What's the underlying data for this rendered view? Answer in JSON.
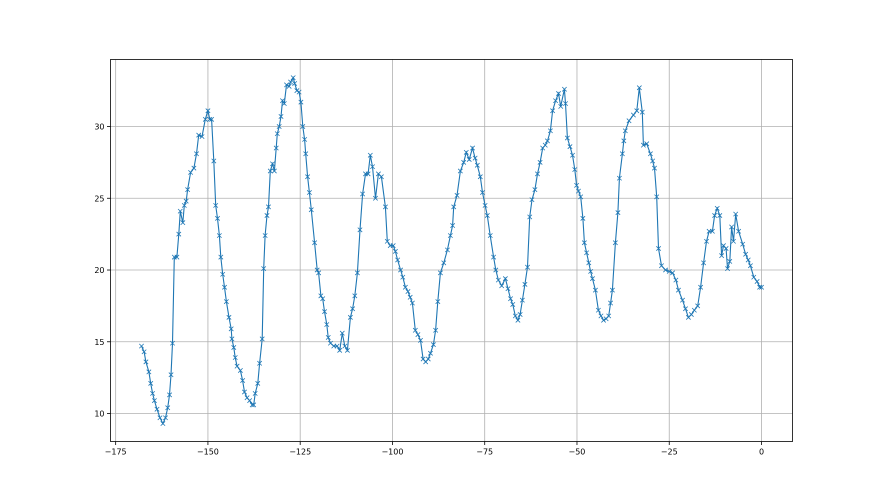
{
  "chart_data": {
    "type": "line",
    "marker": "x",
    "color": "#1f77b4",
    "grid": true,
    "title": "",
    "xlabel": "",
    "ylabel": "",
    "xlim": [
      -176.4,
      8.4
    ],
    "ylim": [
      8.05,
      34.67
    ],
    "xticks": [
      -175,
      -150,
      -125,
      -100,
      -75,
      -50,
      -25,
      0
    ],
    "xtick_labels": [
      "−175",
      "−150",
      "−125",
      "−100",
      "−75",
      "−50",
      "−25",
      "0"
    ],
    "yticks": [
      10,
      15,
      20,
      25,
      30
    ],
    "ytick_labels": [
      "10",
      "15",
      "20",
      "25",
      "30"
    ],
    "points": [
      [
        -168,
        14.7
      ],
      [
        -167.3,
        14.3
      ],
      [
        -166.8,
        13.6
      ],
      [
        -166,
        12.9
      ],
      [
        -165.5,
        12.1
      ],
      [
        -165,
        11.4
      ],
      [
        -164.5,
        10.9
      ],
      [
        -163.8,
        10.3
      ],
      [
        -163,
        9.7
      ],
      [
        -162.2,
        9.3
      ],
      [
        -161.5,
        9.7
      ],
      [
        -160.9,
        10.4
      ],
      [
        -160.4,
        11.3
      ],
      [
        -160,
        12.7
      ],
      [
        -159.6,
        14.9
      ],
      [
        -159.1,
        20.9
      ],
      [
        -158.4,
        20.9
      ],
      [
        -157.9,
        22.5
      ],
      [
        -157.5,
        24.1
      ],
      [
        -156.8,
        23.3
      ],
      [
        -156.4,
        24.5
      ],
      [
        -155.9,
        24.8
      ],
      [
        -155.5,
        25.6
      ],
      [
        -154.7,
        26.8
      ],
      [
        -153.8,
        27.1
      ],
      [
        -153.1,
        28.1
      ],
      [
        -152.5,
        29.4
      ],
      [
        -151.6,
        29.3
      ],
      [
        -150.7,
        30.5
      ],
      [
        -150,
        31.1
      ],
      [
        -149.5,
        30.5
      ],
      [
        -149,
        30.5
      ],
      [
        -148.4,
        27.6
      ],
      [
        -147.9,
        24.5
      ],
      [
        -147.4,
        23.6
      ],
      [
        -146.9,
        22.4
      ],
      [
        -146.5,
        20.9
      ],
      [
        -146,
        19.7
      ],
      [
        -145.5,
        18.8
      ],
      [
        -145,
        17.8
      ],
      [
        -144.3,
        16.7
      ],
      [
        -143.7,
        15.9
      ],
      [
        -143.5,
        15.2
      ],
      [
        -143,
        14.6
      ],
      [
        -142.6,
        13.9
      ],
      [
        -142.1,
        13.3
      ],
      [
        -141.2,
        13
      ],
      [
        -140.6,
        12.3
      ],
      [
        -140.1,
        11.5
      ],
      [
        -139.4,
        11.1
      ],
      [
        -138.7,
        10.9
      ],
      [
        -138,
        10.6
      ],
      [
        -137.6,
        10.6
      ],
      [
        -137.2,
        11.4
      ],
      [
        -136.5,
        12.1
      ],
      [
        -136,
        13.5
      ],
      [
        -135.3,
        15.2
      ],
      [
        -134.9,
        20.1
      ],
      [
        -134.5,
        22.4
      ],
      [
        -134,
        23.8
      ],
      [
        -133.6,
        24.4
      ],
      [
        -133.1,
        26.9
      ],
      [
        -132.5,
        27.4
      ],
      [
        -132,
        26.9
      ],
      [
        -131.5,
        28.5
      ],
      [
        -131.2,
        29.5
      ],
      [
        -130.7,
        30
      ],
      [
        -130.2,
        30.7
      ],
      [
        -129.8,
        31.8
      ],
      [
        -129.3,
        31.6
      ],
      [
        -128.7,
        32.9
      ],
      [
        -128,
        32.8
      ],
      [
        -127.6,
        33.1
      ],
      [
        -126.9,
        33.4
      ],
      [
        -126.5,
        33
      ],
      [
        -125.9,
        32.5
      ],
      [
        -125.3,
        32.4
      ],
      [
        -124.8,
        31.7
      ],
      [
        -124.3,
        30
      ],
      [
        -123.8,
        29.1
      ],
      [
        -123.5,
        28.1
      ],
      [
        -123,
        26.5
      ],
      [
        -122.5,
        25.4
      ],
      [
        -122,
        24.2
      ],
      [
        -121.1,
        21.9
      ],
      [
        -120.4,
        20
      ],
      [
        -120,
        19.8
      ],
      [
        -119.4,
        18.2
      ],
      [
        -118.9,
        18
      ],
      [
        -118.4,
        17.1
      ],
      [
        -117.8,
        16.2
      ],
      [
        -117.4,
        15.3
      ],
      [
        -116.8,
        14.9
      ],
      [
        -115.9,
        14.7
      ],
      [
        -115,
        14.7
      ],
      [
        -114.3,
        14.4
      ],
      [
        -113.6,
        15.6
      ],
      [
        -112.9,
        14.7
      ],
      [
        -112.2,
        14.4
      ],
      [
        -111.4,
        16.7
      ],
      [
        -110.8,
        17.3
      ],
      [
        -110.2,
        18.2
      ],
      [
        -109.5,
        19.8
      ],
      [
        -108.8,
        22.8
      ],
      [
        -108.1,
        25.3
      ],
      [
        -107.3,
        26.7
      ],
      [
        -106.6,
        26.7
      ],
      [
        -106,
        28
      ],
      [
        -105.4,
        27.2
      ],
      [
        -104.6,
        25
      ],
      [
        -103.8,
        26.7
      ],
      [
        -103,
        26.5
      ],
      [
        -101.9,
        24.4
      ],
      [
        -101.4,
        22
      ],
      [
        -100.6,
        21.7
      ],
      [
        -99.8,
        21.7
      ],
      [
        -99.2,
        21.3
      ],
      [
        -98.6,
        20.7
      ],
      [
        -97.8,
        20
      ],
      [
        -97.2,
        19.5
      ],
      [
        -96.5,
        18.8
      ],
      [
        -95.8,
        18.5
      ],
      [
        -95.2,
        18.1
      ],
      [
        -94.6,
        17.7
      ],
      [
        -93.8,
        15.8
      ],
      [
        -93.1,
        15.5
      ],
      [
        -92.4,
        15.1
      ],
      [
        -91.7,
        13.8
      ],
      [
        -91,
        13.6
      ],
      [
        -90.3,
        13.8
      ],
      [
        -89.7,
        14.2
      ],
      [
        -88.9,
        14.8
      ],
      [
        -88.3,
        15.8
      ],
      [
        -87.7,
        17.8
      ],
      [
        -87,
        19.8
      ],
      [
        -86.1,
        20.5
      ],
      [
        -85.1,
        21.4
      ],
      [
        -84.3,
        22.4
      ],
      [
        -83.7,
        23.1
      ],
      [
        -83.4,
        24.4
      ],
      [
        -82.5,
        25.2
      ],
      [
        -81.6,
        26.9
      ],
      [
        -80.7,
        27.5
      ],
      [
        -80,
        28.2
      ],
      [
        -79.2,
        27.7
      ],
      [
        -78.3,
        28.5
      ],
      [
        -77.6,
        27.8
      ],
      [
        -77,
        27.3
      ],
      [
        -76.2,
        26.5
      ],
      [
        -75.6,
        25.4
      ],
      [
        -74.9,
        24.5
      ],
      [
        -74.3,
        23.8
      ],
      [
        -73.5,
        22.4
      ],
      [
        -72.6,
        20.9
      ],
      [
        -72,
        20
      ],
      [
        -71.3,
        19.3
      ],
      [
        -70.4,
        18.9
      ],
      [
        -69.4,
        19.4
      ],
      [
        -68.7,
        18.7
      ],
      [
        -68,
        18
      ],
      [
        -67.4,
        17.6
      ],
      [
        -66.7,
        16.8
      ],
      [
        -66,
        16.5
      ],
      [
        -65.4,
        16.9
      ],
      [
        -64.8,
        17.9
      ],
      [
        -64.1,
        19
      ],
      [
        -63.4,
        20.2
      ],
      [
        -62.8,
        23.7
      ],
      [
        -62.2,
        24.9
      ],
      [
        -61.4,
        25.6
      ],
      [
        -60.7,
        26.7
      ],
      [
        -60,
        27.5
      ],
      [
        -59.3,
        28.5
      ],
      [
        -58.6,
        28.7
      ],
      [
        -58,
        29
      ],
      [
        -57.2,
        29.7
      ],
      [
        -56.6,
        31.1
      ],
      [
        -55.8,
        31.8
      ],
      [
        -55,
        32.3
      ],
      [
        -54.4,
        31.4
      ],
      [
        -53.4,
        32.6
      ],
      [
        -53.1,
        31.6
      ],
      [
        -52.6,
        29.2
      ],
      [
        -51.9,
        28.6
      ],
      [
        -51.2,
        28
      ],
      [
        -50.6,
        27
      ],
      [
        -50.1,
        25.9
      ],
      [
        -49.6,
        25.5
      ],
      [
        -49,
        25.1
      ],
      [
        -48.4,
        23.6
      ],
      [
        -48,
        21.9
      ],
      [
        -47.4,
        21.2
      ],
      [
        -46.8,
        20.5
      ],
      [
        -46.3,
        19.9
      ],
      [
        -45.8,
        19.4
      ],
      [
        -45,
        18.6
      ],
      [
        -44.2,
        17.2
      ],
      [
        -43.5,
        16.8
      ],
      [
        -42.8,
        16.5
      ],
      [
        -42.1,
        16.6
      ],
      [
        -41.4,
        16.8
      ],
      [
        -40.9,
        17.7
      ],
      [
        -40.4,
        18.6
      ],
      [
        -39.6,
        21.9
      ],
      [
        -38.9,
        24
      ],
      [
        -38.5,
        26.4
      ],
      [
        -37.7,
        28.1
      ],
      [
        -37.3,
        29
      ],
      [
        -36.9,
        29.7
      ],
      [
        -35.9,
        30.4
      ],
      [
        -34.7,
        30.8
      ],
      [
        -33.8,
        31.1
      ],
      [
        -33.1,
        32.7
      ],
      [
        -32.3,
        31
      ],
      [
        -32,
        28.7
      ],
      [
        -31.1,
        28.8
      ],
      [
        -30.1,
        28.1
      ],
      [
        -29.5,
        27.6
      ],
      [
        -29,
        27.1
      ],
      [
        -28.4,
        25.1
      ],
      [
        -27.9,
        21.5
      ],
      [
        -27.1,
        20.3
      ],
      [
        -26,
        20
      ],
      [
        -25,
        19.9
      ],
      [
        -24.1,
        19.8
      ],
      [
        -23.2,
        19.3
      ],
      [
        -22.5,
        18.6
      ],
      [
        -21.4,
        17.9
      ],
      [
        -20.6,
        17.3
      ],
      [
        -19.8,
        16.7
      ],
      [
        -19,
        16.9
      ],
      [
        -18.2,
        17.2
      ],
      [
        -17.3,
        17.5
      ],
      [
        -16.5,
        18.8
      ],
      [
        -15.7,
        20.5
      ],
      [
        -14.9,
        22
      ],
      [
        -14.2,
        22.7
      ],
      [
        -13.3,
        22.7
      ],
      [
        -12.7,
        23.8
      ],
      [
        -12,
        24.3
      ],
      [
        -11.3,
        23.8
      ],
      [
        -10.8,
        21
      ],
      [
        -10.3,
        21.7
      ],
      [
        -9.6,
        21.5
      ],
      [
        -9.2,
        20.1
      ],
      [
        -8.6,
        20.6
      ],
      [
        -8.1,
        23
      ],
      [
        -7.6,
        22
      ],
      [
        -7,
        23.9
      ],
      [
        -6.2,
        22.7
      ],
      [
        -5.1,
        21.8
      ],
      [
        -4.3,
        21.1
      ],
      [
        -3.6,
        20.7
      ],
      [
        -3,
        20.3
      ],
      [
        -2.1,
        19.5
      ],
      [
        -1.2,
        19.2
      ],
      [
        -0.5,
        18.8
      ],
      [
        0,
        18.8
      ]
    ]
  }
}
